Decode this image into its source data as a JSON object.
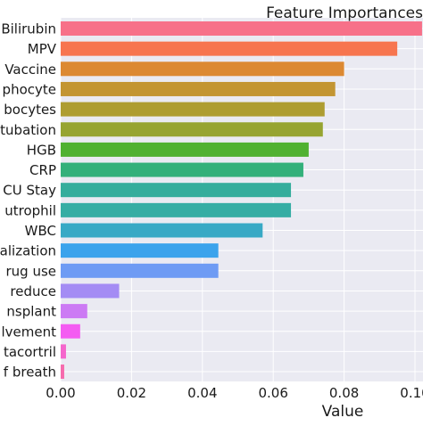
{
  "chart_data": {
    "type": "bar",
    "orientation": "horizontal",
    "title": "Feature Importances",
    "xlabel": "Value",
    "ylabel": "",
    "xlim": [
      0.0,
      0.1
    ],
    "xticks": [
      "0.00",
      "0.02",
      "0.04",
      "0.06",
      "0.08",
      "0.10"
    ],
    "grid": true,
    "background": "#eaeaf2",
    "categories": [
      "Bilirubin",
      "MPV",
      "Vaccine",
      "phocyte",
      "bocytes",
      "tubation",
      "HGB",
      "CRP",
      "CU Stay",
      "utrophil",
      "WBC",
      "alization",
      "rug use",
      "reduce",
      "nsplant",
      "lvement",
      "tacortril",
      "f breath"
    ],
    "values": [
      0.102,
      0.095,
      0.08,
      0.0775,
      0.0745,
      0.074,
      0.07,
      0.0685,
      0.065,
      0.065,
      0.057,
      0.0445,
      0.0445,
      0.0165,
      0.0075,
      0.0055,
      0.0015,
      0.001
    ],
    "colors": [
      "#f77189",
      "#f7754f",
      "#dc8932",
      "#c39532",
      "#ae9d31",
      "#97a431",
      "#50b131",
      "#33b07a",
      "#35ad9c",
      "#36ada4",
      "#38a9c5",
      "#3ba3ec",
      "#6e9bf4",
      "#a48cf4",
      "#cc7af4",
      "#f45cf2",
      "#f565cc",
      "#f66bad"
    ]
  }
}
